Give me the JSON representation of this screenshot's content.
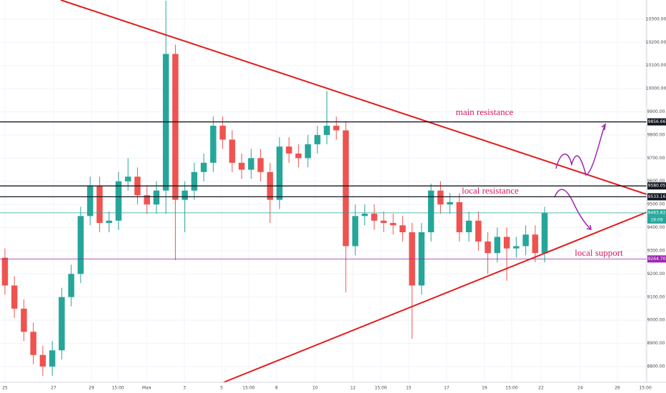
{
  "chart_data": {
    "type": "candlestick",
    "x": [
      0,
      0.5,
      1,
      1.5,
      2,
      2.5,
      3,
      3.5,
      4,
      4.5,
      5,
      5.5,
      6,
      6.5,
      7,
      7.5,
      8,
      8.5,
      9,
      9.5,
      10,
      10.5,
      11,
      11.5,
      12,
      12.5,
      13,
      13.5,
      14,
      14.5,
      15,
      15.5,
      16,
      16.5,
      17,
      17.5,
      18,
      18.5,
      19,
      19.5,
      20,
      20.5,
      21,
      21.5,
      22,
      22.5,
      23,
      23.5,
      24,
      24.5,
      25,
      25.5,
      26,
      26.5,
      27,
      27.5,
      28,
      28.5
    ],
    "open": [
      9270,
      9150,
      9050,
      8950,
      8850,
      8800,
      8870,
      9100,
      9200,
      9450,
      9580,
      9420,
      9430,
      9600,
      9620,
      9540,
      9500,
      9560,
      10150,
      9520,
      9560,
      9640,
      9680,
      9840,
      9780,
      9680,
      9650,
      9700,
      9640,
      9520,
      9750,
      9720,
      9700,
      9760,
      9800,
      9840,
      9820,
      9320,
      9450,
      9460,
      9430,
      9420,
      9410,
      9380,
      9150,
      9380,
      9560,
      9500,
      9510,
      9380,
      9430,
      9340,
      9290,
      9360,
      9310,
      9320,
      9370,
      9290
    ],
    "high": [
      9310,
      9190,
      9090,
      8990,
      8890,
      8910,
      9140,
      9240,
      9490,
      9620,
      9620,
      9470,
      9640,
      9700,
      9660,
      9580,
      9600,
      10380,
      10190,
      9600,
      9680,
      9720,
      9880,
      9880,
      9820,
      9720,
      9740,
      9740,
      9680,
      9790,
      9790,
      9760,
      9800,
      9840,
      9990,
      9880,
      9860,
      9500,
      9500,
      9500,
      9470,
      9460,
      9450,
      9420,
      9420,
      9590,
      9600,
      9550,
      9550,
      9470,
      9470,
      9380,
      9400,
      9400,
      9360,
      9410,
      9410,
      9490
    ],
    "low": [
      9110,
      9010,
      8910,
      8810,
      8760,
      8760,
      8830,
      9060,
      9160,
      9410,
      9380,
      9380,
      9390,
      9560,
      9500,
      9460,
      9460,
      9460,
      9260,
      9380,
      9520,
      9600,
      9640,
      9740,
      9640,
      9610,
      9610,
      9600,
      9420,
      9480,
      9680,
      9660,
      9660,
      9720,
      9760,
      9780,
      9120,
      9280,
      9410,
      9390,
      9380,
      9370,
      9340,
      8920,
      9110,
      9340,
      9460,
      9460,
      9340,
      9340,
      9300,
      9200,
      9250,
      9170,
      9270,
      9280,
      9250,
      9250
    ],
    "close": [
      9150,
      9050,
      8950,
      8850,
      8800,
      8870,
      9100,
      9200,
      9450,
      9580,
      9420,
      9430,
      9600,
      9620,
      9540,
      9500,
      9560,
      10150,
      9520,
      9560,
      9640,
      9680,
      9840,
      9780,
      9680,
      9650,
      9700,
      9640,
      9520,
      9750,
      9720,
      9700,
      9760,
      9800,
      9840,
      9820,
      9320,
      9450,
      9460,
      9430,
      9420,
      9410,
      9380,
      9150,
      9380,
      9560,
      9500,
      9510,
      9380,
      9430,
      9340,
      9290,
      9360,
      9310,
      9320,
      9370,
      9290,
      9463
    ],
    "up_color": "#26a69a",
    "down_color": "#ef5350",
    "grid": true,
    "ylim": [
      8732,
      10383
    ],
    "yticks": [
      {
        "value": 8800,
        "label": "8800.00"
      },
      {
        "value": 8900,
        "label": "8900.00"
      },
      {
        "value": 9000,
        "label": "9000.00"
      },
      {
        "value": 9100,
        "label": "9100.00"
      },
      {
        "value": 9200,
        "label": "9200.00"
      },
      {
        "value": 9300,
        "label": "9300.00"
      },
      {
        "value": 9400,
        "label": "9400.00"
      },
      {
        "value": 9500,
        "label": "9500.00"
      },
      {
        "value": 9600,
        "label": "9600.00"
      },
      {
        "value": 9700,
        "label": "9700.00"
      },
      {
        "value": 9800,
        "label": "9800.00"
      },
      {
        "value": 9900,
        "label": "9900.00"
      },
      {
        "value": 10000,
        "label": "10000.00"
      },
      {
        "value": 10100,
        "label": "10100.00"
      },
      {
        "value": 10200,
        "label": "10200.00"
      },
      {
        "value": 10300,
        "label": "10300.00"
      }
    ],
    "xlim": [
      -0.26,
      33.89
    ],
    "xticks": [
      {
        "value": 0,
        "label": "25"
      },
      {
        "value": 2.57,
        "label": "27"
      },
      {
        "value": 4.57,
        "label": "29"
      },
      {
        "value": 5.97,
        "label": "15:00"
      },
      {
        "value": 7.48,
        "label": "Мая"
      },
      {
        "value": 9.48,
        "label": "3"
      },
      {
        "value": 11.44,
        "label": "5"
      },
      {
        "value": 12.87,
        "label": "15:00"
      },
      {
        "value": 14.34,
        "label": "8"
      },
      {
        "value": 16.38,
        "label": "10"
      },
      {
        "value": 18.38,
        "label": "12"
      },
      {
        "value": 19.85,
        "label": "15:00"
      },
      {
        "value": 21.32,
        "label": "15"
      },
      {
        "value": 23.32,
        "label": "17"
      },
      {
        "value": 25.32,
        "label": "19"
      },
      {
        "value": 26.76,
        "label": "15:00"
      },
      {
        "value": 28.31,
        "label": "22"
      },
      {
        "value": 30.38,
        "label": "24"
      },
      {
        "value": 32.34,
        "label": "26"
      },
      {
        "value": 33.82,
        "label": "15:00"
      }
    ],
    "levels": [
      {
        "value": 9856.66,
        "label": "9856.66",
        "color": "#131722"
      },
      {
        "value": 9580.05,
        "label": "9580.05",
        "color": "#131722"
      },
      {
        "value": 9533.16,
        "label": "9533.16",
        "color": "#131722"
      },
      {
        "value": 9463.82,
        "label": "9463.82",
        "color": "#26a69a"
      },
      {
        "value": 9264.7,
        "label": "9264.70",
        "color": "#9c27b0"
      }
    ],
    "countdown": "19:09",
    "annotations": [
      "main resistance",
      "local resistance",
      "local support"
    ]
  }
}
